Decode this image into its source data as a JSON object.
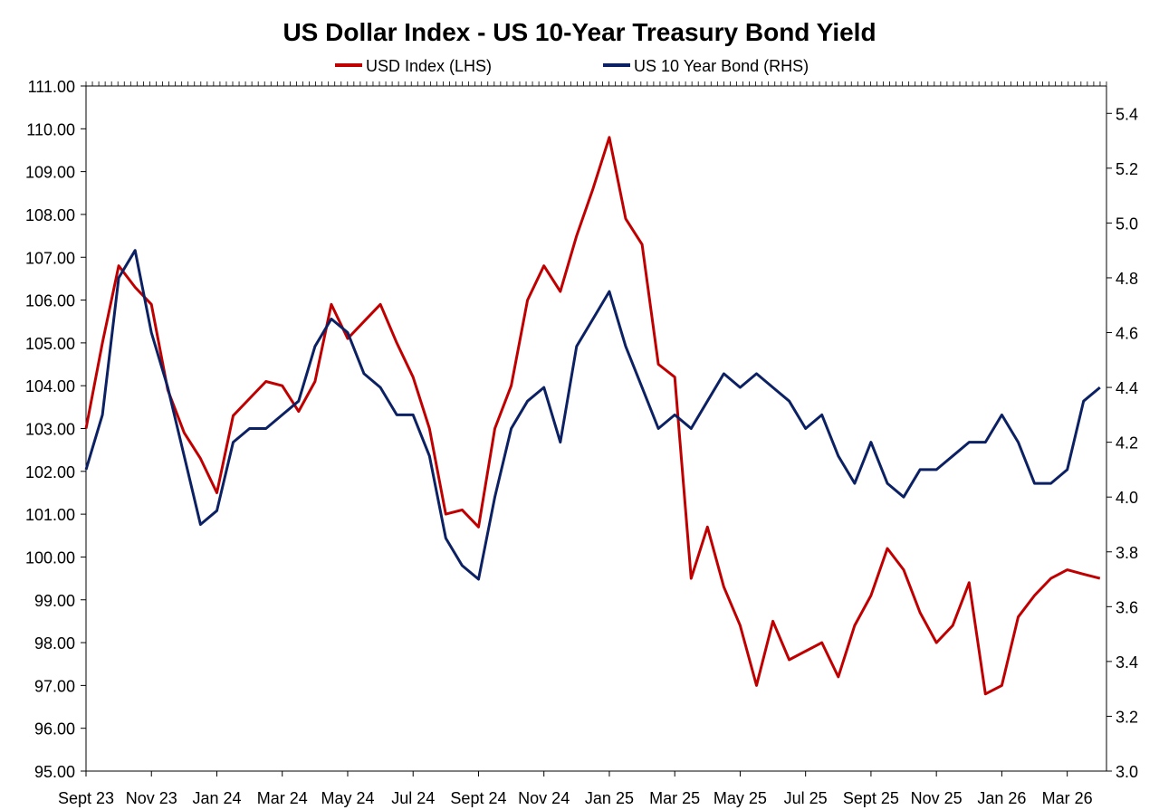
{
  "chart_data": {
    "type": "line",
    "title": "US Dollar Index - US 10-Year Treasury Bond Yield",
    "legend_position": "top-center",
    "grid": false,
    "x_tick_labels": [
      "Sept 23",
      "Nov 23",
      "Jan 24",
      "Mar 24",
      "May 24",
      "Jul 24",
      "Sept 24",
      "Nov 24",
      "Jan 25",
      "Mar 25",
      "May 25",
      "Jul 25",
      "Sept 25",
      "Nov 25",
      "Jan 26",
      "Mar 26"
    ],
    "x_range_months": [
      "Sept 23",
      "Mar 26"
    ],
    "left_axis": {
      "ylim": [
        95.0,
        111.0
      ],
      "ticks": [
        "95.00",
        "96.00",
        "97.00",
        "98.00",
        "99.00",
        "100.00",
        "101.00",
        "102.00",
        "103.00",
        "104.00",
        "105.00",
        "106.00",
        "107.00",
        "108.00",
        "109.00",
        "110.00",
        "111.00"
      ]
    },
    "right_axis": {
      "ylim": [
        3.0,
        5.5
      ],
      "ticks": [
        "3.0",
        "3.2",
        "3.4",
        "3.6",
        "3.8",
        "4.0",
        "4.2",
        "4.4",
        "4.6",
        "4.8",
        "5.0",
        "5.2",
        "5.4"
      ]
    },
    "x_months": [
      0,
      0.5,
      1,
      1.5,
      2,
      2.5,
      3,
      3.5,
      4,
      4.5,
      5,
      5.5,
      6,
      6.5,
      7,
      7.5,
      8,
      8.5,
      9,
      9.5,
      10,
      10.5,
      11,
      11.5,
      12,
      12.5,
      13,
      13.5,
      14,
      14.5,
      15,
      15.5,
      16,
      16.5,
      17,
      17.5,
      18,
      18.5,
      19,
      19.5,
      20,
      20.5,
      21,
      21.5,
      22,
      22.5,
      23,
      23.5,
      24,
      24.5,
      25,
      25.5,
      26,
      26.5,
      27,
      27.5,
      28,
      28.5,
      29,
      29.5,
      30,
      30.5,
      31
    ],
    "series": [
      {
        "name": "USD Index (LHS)",
        "axis": "left",
        "color": "#c00000",
        "values": [
          103.0,
          105.0,
          106.8,
          106.3,
          105.9,
          103.9,
          102.9,
          102.3,
          101.5,
          103.3,
          103.7,
          104.1,
          104.0,
          103.4,
          104.1,
          105.9,
          105.1,
          105.5,
          105.9,
          105.0,
          104.2,
          103.0,
          101.0,
          101.1,
          100.7,
          103.0,
          104.0,
          106.0,
          106.8,
          106.2,
          107.5,
          108.6,
          109.8,
          107.9,
          107.3,
          104.5,
          104.2,
          99.5,
          100.7,
          99.3,
          98.4,
          97.0,
          98.5,
          97.6,
          97.8,
          98.0,
          97.2,
          98.4,
          99.1,
          100.2,
          99.7,
          98.7,
          98.0,
          98.4,
          99.4,
          96.8,
          97.0,
          98.6,
          99.1,
          99.5,
          99.7,
          99.6,
          99.5
        ]
      },
      {
        "name": "US 10 Year Bond (RHS)",
        "axis": "right",
        "color": "#0c2163",
        "values": [
          4.1,
          4.3,
          4.8,
          4.9,
          4.6,
          4.4,
          4.15,
          3.9,
          3.95,
          4.2,
          4.25,
          4.25,
          4.3,
          4.35,
          4.55,
          4.65,
          4.6,
          4.45,
          4.4,
          4.3,
          4.3,
          4.15,
          3.85,
          3.75,
          3.7,
          4.0,
          4.25,
          4.35,
          4.4,
          4.2,
          4.55,
          4.65,
          4.75,
          4.55,
          4.4,
          4.25,
          4.3,
          4.25,
          4.35,
          4.45,
          4.4,
          4.45,
          4.4,
          4.35,
          4.25,
          4.3,
          4.15,
          4.05,
          4.2,
          4.05,
          4.0,
          4.1,
          4.1,
          4.15,
          4.2,
          4.2,
          4.3,
          4.2,
          4.05,
          4.05,
          4.1,
          4.35,
          4.4
        ]
      }
    ]
  }
}
